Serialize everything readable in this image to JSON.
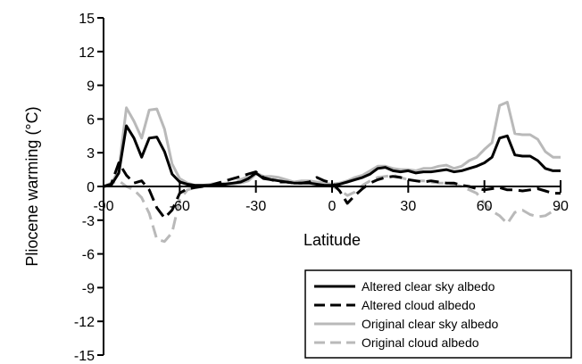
{
  "chart_data": {
    "type": "line",
    "title": "",
    "xlabel": "Latitude",
    "ylabel": "Pliocene warming  (°C)",
    "xlim": [
      -90,
      90
    ],
    "ylim": [
      -15,
      15
    ],
    "xticks": [
      -90,
      -60,
      -30,
      0,
      30,
      60,
      90
    ],
    "xtick_labels": [
      "-90",
      "-60",
      "-30",
      "0",
      "30",
      "60",
      "90"
    ],
    "yticks": [
      15,
      12,
      9,
      6,
      3,
      0,
      -3,
      -6,
      -9,
      -12,
      -15
    ],
    "ytick_labels": [
      "15",
      "12",
      "9",
      "6",
      "3",
      "0",
      "-3",
      "-6",
      "-9",
      "-12",
      "-15"
    ],
    "grid": false,
    "legend_position": "bottom-right",
    "series": [
      {
        "name": "Original clear sky albedo",
        "color": "#b9b9b9",
        "dash": "solid",
        "x": [
          -90,
          -87,
          -84,
          -81,
          -78,
          -75,
          -72,
          -69,
          -66,
          -63,
          -60,
          -57,
          -54,
          -51,
          -48,
          -45,
          -42,
          -39,
          -36,
          -33,
          -30,
          -27,
          -24,
          -21,
          -18,
          -15,
          -12,
          -9,
          -6,
          -3,
          0,
          3,
          6,
          9,
          12,
          15,
          18,
          21,
          24,
          27,
          30,
          33,
          36,
          39,
          42,
          45,
          48,
          51,
          54,
          57,
          60,
          63,
          66,
          69,
          72,
          75,
          78,
          81,
          84,
          87,
          90
        ],
        "y": [
          0.0,
          0.2,
          1.5,
          7.0,
          5.8,
          4.3,
          6.8,
          6.9,
          5.1,
          2.0,
          0.7,
          0.3,
          0.1,
          0.1,
          0.2,
          0.3,
          0.2,
          0.2,
          0.3,
          0.5,
          1.1,
          0.9,
          0.9,
          0.8,
          0.6,
          0.4,
          0.5,
          0.5,
          0.4,
          0.3,
          0.2,
          0.3,
          0.5,
          0.8,
          1.0,
          1.4,
          1.8,
          1.8,
          1.6,
          1.5,
          1.5,
          1.4,
          1.6,
          1.6,
          1.8,
          1.9,
          1.6,
          1.8,
          2.3,
          2.6,
          3.3,
          3.9,
          7.2,
          7.5,
          4.7,
          4.6,
          4.6,
          4.2,
          3.1,
          2.6,
          2.6
        ]
      },
      {
        "name": "Original cloud albedo",
        "color": "#b9b9b9",
        "dash": "dashed",
        "x": [
          -90,
          -87,
          -84,
          -81,
          -78,
          -75,
          -72,
          -69,
          -66,
          -63,
          -60,
          -57,
          -54,
          -51,
          -48,
          -45,
          -42,
          -39,
          -36,
          -33,
          -30,
          -27,
          -24,
          -21,
          -18,
          -15,
          -12,
          -9,
          -6,
          -3,
          0,
          3,
          6,
          9,
          12,
          15,
          18,
          21,
          24,
          27,
          30,
          33,
          36,
          39,
          42,
          45,
          48,
          51,
          54,
          57,
          60,
          63,
          66,
          69,
          72,
          75,
          78,
          81,
          84,
          87,
          90
        ],
        "y": [
          0.0,
          0.3,
          0.5,
          0.0,
          -0.3,
          -1.0,
          -2.4,
          -4.7,
          -4.9,
          -4.1,
          -1.2,
          -0.3,
          -0.1,
          0.0,
          0.1,
          0.2,
          0.3,
          0.3,
          0.6,
          0.9,
          1.2,
          0.9,
          0.7,
          0.5,
          0.5,
          0.4,
          0.3,
          0.3,
          0.2,
          0.1,
          0.0,
          -0.3,
          -0.8,
          -0.5,
          0.1,
          0.5,
          0.8,
          0.9,
          1.0,
          0.8,
          0.6,
          0.5,
          0.5,
          0.4,
          0.3,
          0.3,
          0.2,
          0.0,
          -0.3,
          -0.6,
          -1.5,
          -2.2,
          -2.6,
          -3.3,
          -2.3,
          -2.1,
          -2.5,
          -2.7,
          -2.6,
          -2.2,
          -1.9
        ]
      },
      {
        "name": "Altered clear sky albedo",
        "color": "#000000",
        "dash": "solid",
        "x": [
          -90,
          -87,
          -84,
          -81,
          -78,
          -75,
          -72,
          -69,
          -66,
          -63,
          -60,
          -57,
          -54,
          -51,
          -48,
          -45,
          -42,
          -39,
          -36,
          -33,
          -30,
          -27,
          -24,
          -21,
          -18,
          -15,
          -12,
          -9,
          -6,
          -3,
          0,
          3,
          6,
          9,
          12,
          15,
          18,
          21,
          24,
          27,
          30,
          33,
          36,
          39,
          42,
          45,
          48,
          51,
          54,
          57,
          60,
          63,
          66,
          69,
          72,
          75,
          78,
          81,
          84,
          87,
          90
        ],
        "y": [
          0.0,
          0.1,
          1.2,
          5.4,
          4.3,
          2.6,
          4.3,
          4.4,
          3.1,
          1.1,
          0.4,
          0.2,
          0.1,
          0.1,
          0.1,
          0.2,
          0.2,
          0.3,
          0.4,
          0.7,
          1.2,
          0.7,
          0.6,
          0.5,
          0.4,
          0.3,
          0.3,
          0.3,
          0.2,
          0.1,
          0.1,
          0.2,
          0.4,
          0.6,
          0.8,
          1.1,
          1.6,
          1.7,
          1.4,
          1.3,
          1.4,
          1.2,
          1.3,
          1.3,
          1.4,
          1.5,
          1.3,
          1.4,
          1.6,
          1.8,
          2.1,
          2.6,
          4.3,
          4.5,
          2.8,
          2.7,
          2.7,
          2.3,
          1.6,
          1.4,
          1.4
        ]
      },
      {
        "name": "Altered cloud albedo",
        "color": "#000000",
        "dash": "dashed",
        "x": [
          -90,
          -87,
          -84,
          -81,
          -78,
          -75,
          -72,
          -69,
          -66,
          -63,
          -60,
          -57,
          -54,
          -51,
          -48,
          -45,
          -42,
          -39,
          -36,
          -33,
          -30,
          -27,
          -24,
          -21,
          -18,
          -15,
          -12,
          -9,
          -6,
          -3,
          0,
          3,
          6,
          9,
          12,
          15,
          18,
          21,
          24,
          27,
          30,
          33,
          36,
          39,
          42,
          45,
          48,
          51,
          54,
          57,
          60,
          63,
          66,
          69,
          72,
          75,
          78,
          81,
          84,
          87,
          90
        ],
        "y": [
          0.0,
          0.2,
          2.1,
          1.0,
          0.3,
          0.5,
          -0.3,
          -1.9,
          -2.8,
          -2.1,
          -0.6,
          -0.2,
          -0.1,
          0.0,
          0.1,
          0.3,
          0.5,
          0.7,
          0.9,
          1.1,
          1.3,
          0.8,
          0.6,
          0.4,
          0.4,
          0.3,
          0.3,
          0.4,
          0.8,
          0.5,
          0.3,
          -0.4,
          -1.5,
          -0.8,
          -0.2,
          0.3,
          0.6,
          0.8,
          0.9,
          0.8,
          0.6,
          0.5,
          0.4,
          0.5,
          0.4,
          0.3,
          0.3,
          0.1,
          0.0,
          -0.2,
          -0.3,
          -0.2,
          -0.1,
          -0.3,
          -0.3,
          -0.4,
          -0.3,
          -0.2,
          -0.4,
          -0.6,
          -0.6
        ]
      }
    ],
    "legend_order": [
      "Altered clear sky albedo",
      "Altered cloud albedo",
      "Original clear sky albedo",
      "Original cloud albedo"
    ]
  }
}
